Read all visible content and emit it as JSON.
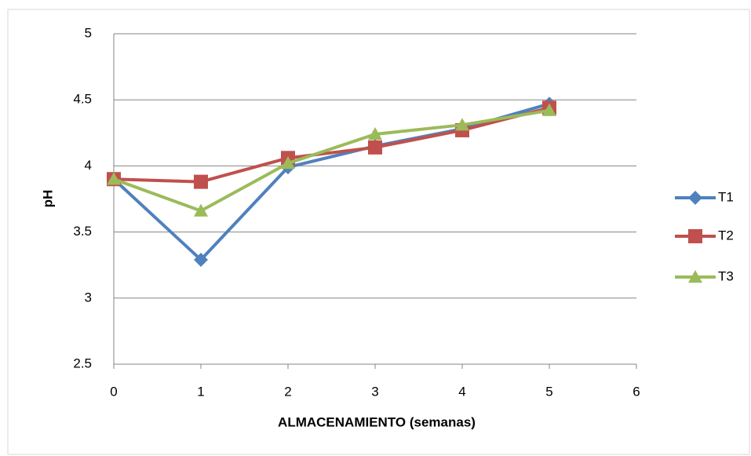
{
  "chart_data": {
    "type": "line",
    "x_label": "ALMACENAMIENTO (semanas)",
    "y_label": "pH",
    "x": [
      0,
      1,
      2,
      3,
      4,
      5
    ],
    "series": [
      {
        "name": "T1",
        "color": "#4f81bd",
        "marker": "diamond",
        "values": [
          3.9,
          3.29,
          3.99,
          4.15,
          4.28,
          4.47
        ]
      },
      {
        "name": "T2",
        "color": "#c0504d",
        "marker": "square",
        "values": [
          3.9,
          3.88,
          4.06,
          4.14,
          4.27,
          4.44
        ]
      },
      {
        "name": "T3",
        "color": "#9bbb59",
        "marker": "triangle",
        "values": [
          3.9,
          3.66,
          4.02,
          4.24,
          4.31,
          4.42
        ]
      }
    ],
    "xlim": [
      0,
      6
    ],
    "xticks": [
      0,
      1,
      2,
      3,
      4,
      5,
      6
    ],
    "ylim": [
      2.5,
      5
    ],
    "yticks": [
      2.5,
      3,
      3.5,
      4,
      4.5,
      5
    ],
    "grid": true,
    "legend": "right"
  }
}
